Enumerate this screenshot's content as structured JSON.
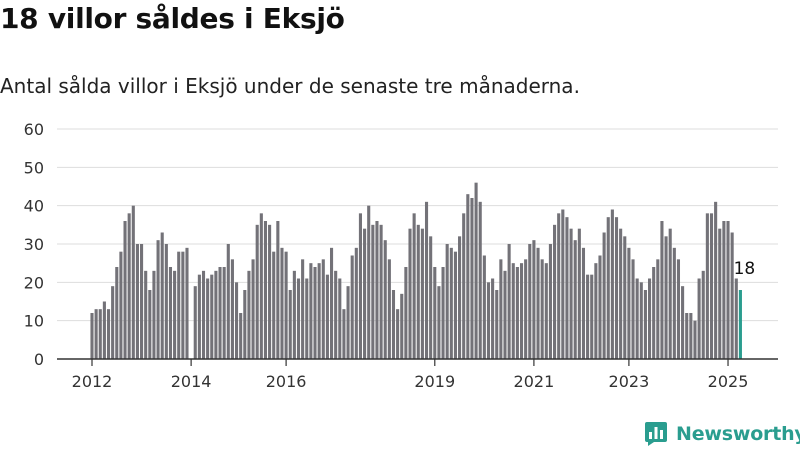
{
  "header": {
    "title": "18 villor såldes i Eksjö",
    "subtitle": "Antal sålda villor i Eksjö under de senaste tre månaderna."
  },
  "logo": {
    "text": "Newsworthy",
    "icon": "newsworthy-logo-icon"
  },
  "colors": {
    "bar": "#737278",
    "highlight": "#2a9d8f",
    "grid": "#dddddd",
    "axis": "#333333"
  },
  "chart_data": {
    "type": "bar",
    "title": "",
    "xlabel": "",
    "ylabel": "",
    "ylim": [
      0,
      60
    ],
    "yticks": [
      "0",
      "10",
      "20",
      "30",
      "40",
      "50",
      "60"
    ],
    "xticks": [
      {
        "label": "2012",
        "index": 0
      },
      {
        "label": "2014",
        "index": 24
      },
      {
        "label": "2016",
        "index": 47
      },
      {
        "label": "2019",
        "index": 83
      },
      {
        "label": "2021",
        "index": 107
      },
      {
        "label": "2023",
        "index": 130
      },
      {
        "label": "2025",
        "index": 154
      }
    ],
    "grid": true,
    "values": [
      12,
      13,
      13,
      15,
      13,
      19,
      24,
      28,
      36,
      38,
      40,
      30,
      30,
      23,
      18,
      23,
      31,
      33,
      30,
      24,
      23,
      28,
      28,
      29,
      0,
      19,
      22,
      23,
      21,
      22,
      23,
      24,
      24,
      30,
      26,
      20,
      12,
      18,
      23,
      26,
      35,
      38,
      36,
      35,
      28,
      36,
      29,
      28,
      18,
      23,
      21,
      26,
      21,
      25,
      24,
      25,
      26,
      22,
      29,
      23,
      21,
      13,
      19,
      27,
      29,
      38,
      34,
      40,
      35,
      36,
      35,
      31,
      26,
      18,
      13,
      17,
      24,
      34,
      38,
      35,
      34,
      41,
      32,
      24,
      19,
      24,
      30,
      29,
      28,
      32,
      38,
      43,
      42,
      46,
      41,
      27,
      20,
      21,
      18,
      26,
      23,
      30,
      25,
      24,
      25,
      26,
      30,
      31,
      29,
      26,
      25,
      30,
      35,
      38,
      39,
      37,
      34,
      31,
      34,
      29,
      22,
      22,
      25,
      27,
      33,
      37,
      39,
      37,
      34,
      32,
      29,
      26,
      21,
      20,
      18,
      21,
      24,
      26,
      36,
      32,
      34,
      29,
      26,
      19,
      12,
      12,
      10,
      21,
      23,
      38,
      38,
      41,
      34,
      36,
      36,
      33,
      21,
      18
    ],
    "highlight_last": true,
    "data_labels": [
      {
        "index": 157,
        "text": "18"
      }
    ]
  }
}
